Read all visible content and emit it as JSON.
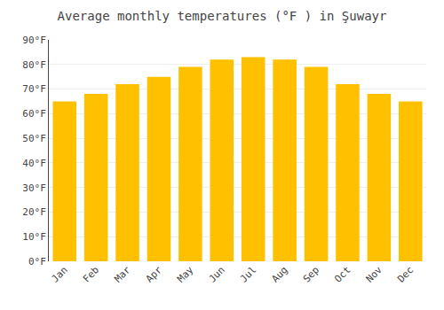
{
  "chart_data": {
    "type": "bar",
    "title": "Average monthly temperatures (°F ) in Şuwayr",
    "categories": [
      "Jan",
      "Feb",
      "Mar",
      "Apr",
      "May",
      "Jun",
      "Jul",
      "Aug",
      "Sep",
      "Oct",
      "Nov",
      "Dec"
    ],
    "values": [
      65,
      68,
      72,
      75,
      79,
      82,
      83,
      82,
      79,
      72,
      68,
      65
    ],
    "color": "#FFC000",
    "ylim": [
      0,
      90
    ],
    "yticks": [
      {
        "value": 0,
        "label": "0°F"
      },
      {
        "value": 10,
        "label": "10°F"
      },
      {
        "value": 20,
        "label": "20°F"
      },
      {
        "value": 30,
        "label": "30°F"
      },
      {
        "value": 40,
        "label": "40°F"
      },
      {
        "value": 50,
        "label": "50°F"
      },
      {
        "value": 60,
        "label": "60°F"
      },
      {
        "value": 70,
        "label": "70°F"
      },
      {
        "value": 80,
        "label": "80°F"
      },
      {
        "value": 90,
        "label": "90°F"
      }
    ],
    "grid": true
  }
}
